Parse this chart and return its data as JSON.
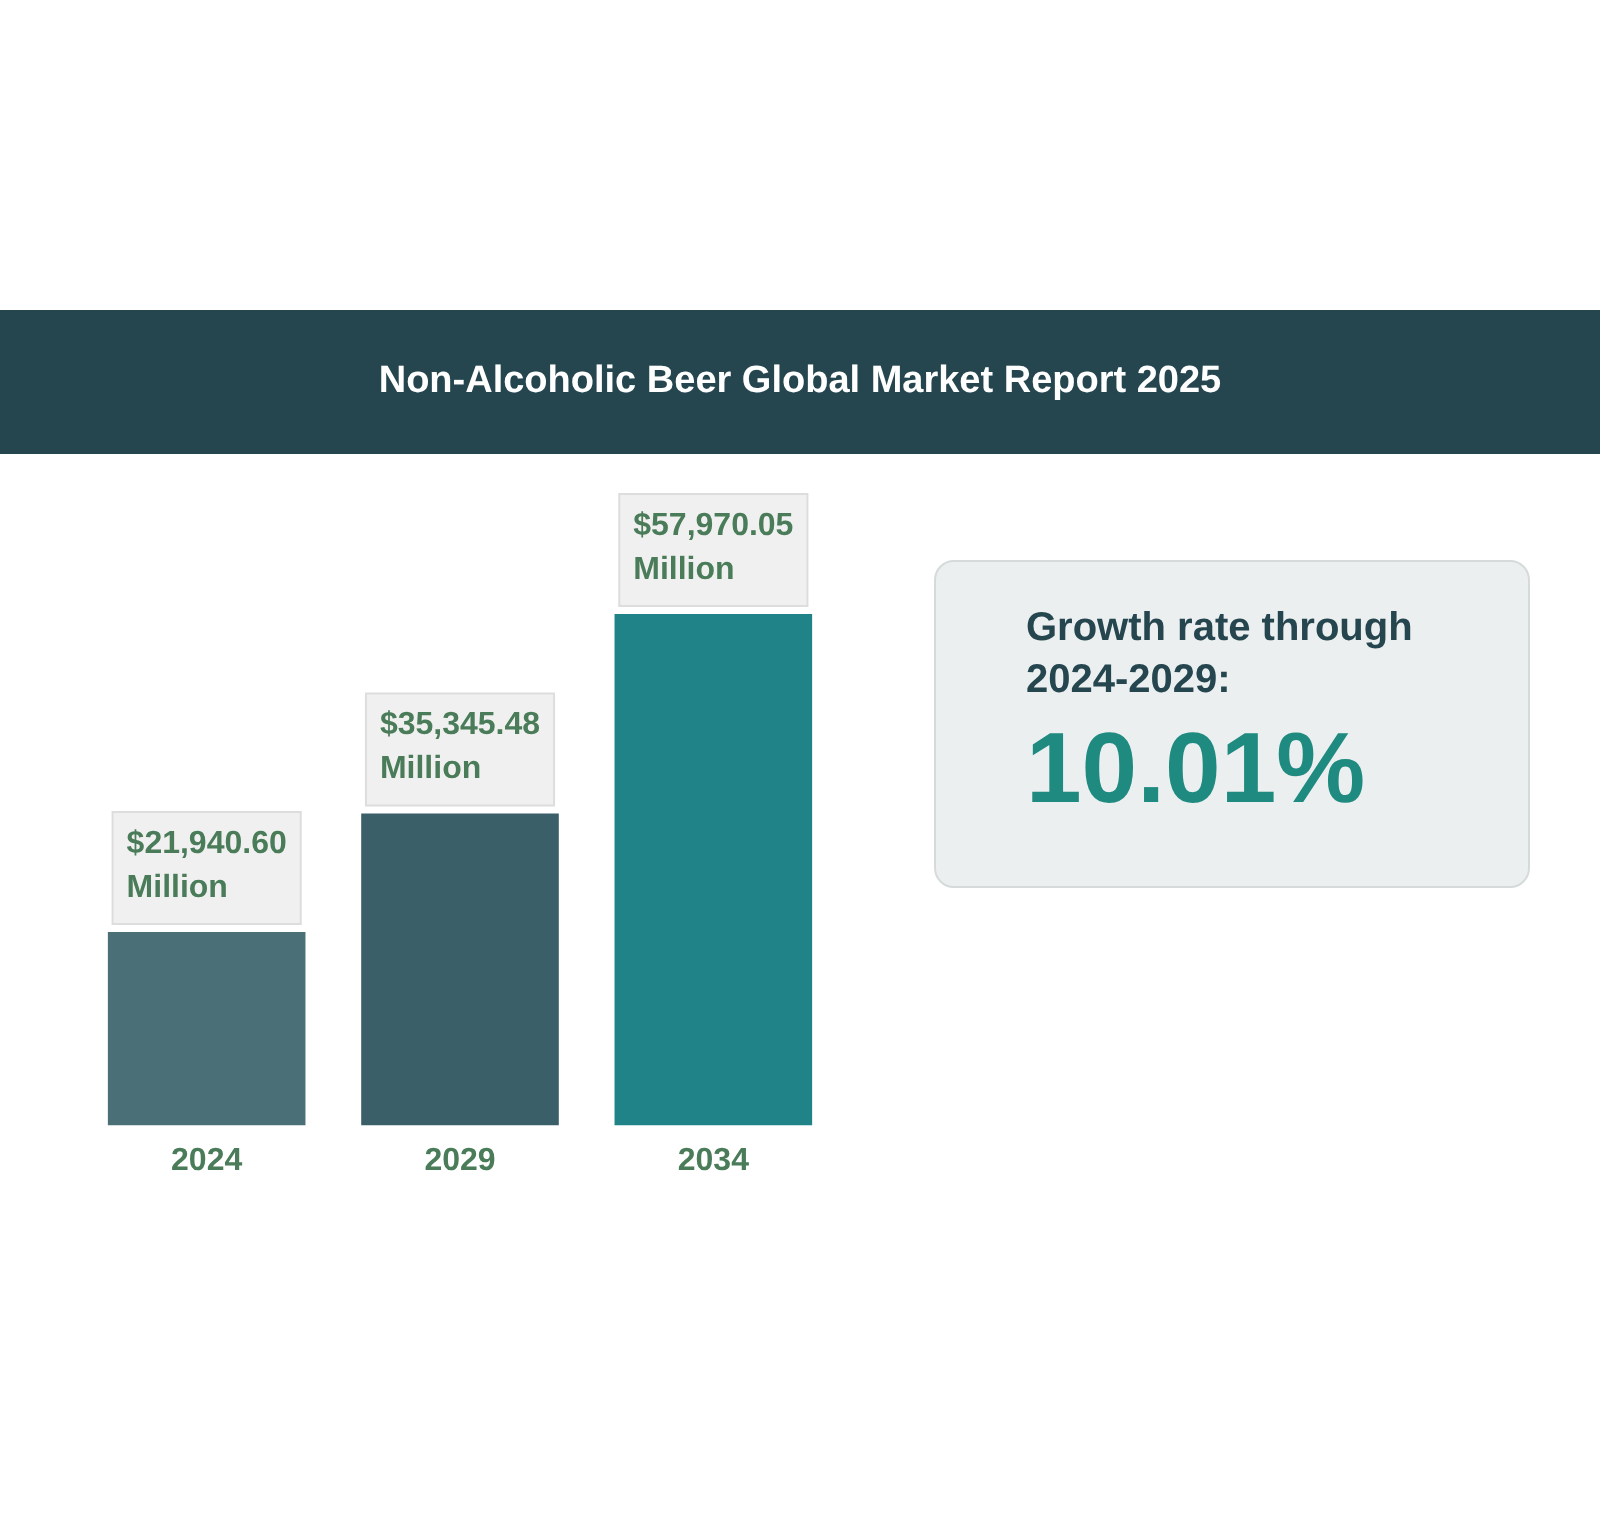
{
  "chart_data": [
    {
      "type": "bar",
      "title": "Non-Alcoholic Beer Global Market Report 2025",
      "categories": [
        "2024",
        "2029",
        "2034"
      ],
      "values": [
        21940.6,
        35345.48,
        57970.05
      ],
      "colors": [
        "#4a6f76",
        "#3a5f69",
        "#1f8388"
      ],
      "value_labels": [
        "$21,940.60 Million",
        "$35,345.48 Million",
        "$57,970.05 Million"
      ],
      "grid": false,
      "legend": false
    },
    {
      "type": "other",
      "title": "Growth rate through 2024-2029:",
      "annotations": [
        "10.01%"
      ]
    }
  ]
}
